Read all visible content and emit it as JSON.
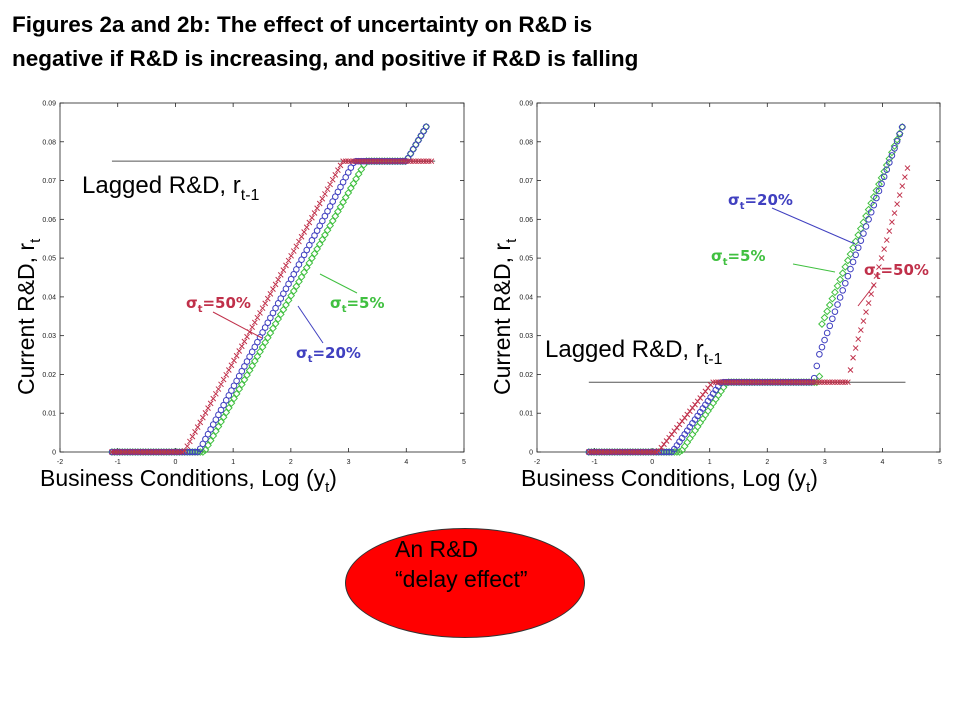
{
  "title_line1": "Figures 2a and 2b: The effect of uncertainty on R&D is",
  "title_line2": "negative if R&D is increasing, and positive if R&D is falling",
  "callout": {
    "line1": "An R&D",
    "line2": "“delay effect”"
  },
  "colors": {
    "sigma50": "#c0304a",
    "sigma20": "#4040c0",
    "sigma5": "#40c040",
    "lagged_line": "#555555",
    "bubble": "#ff0000"
  },
  "chart_data": [
    {
      "type": "scatter",
      "label": "2a",
      "xlabel": "Business Conditions, Log (y",
      "xlabel_sub": "t",
      "ylabel": "Current R&D, r",
      "ylabel_sub": "t",
      "xlim": [
        -2,
        5
      ],
      "ylim": [
        0,
        0.09
      ],
      "xticks": [
        "-2",
        "-1",
        "0",
        "1",
        "2",
        "3",
        "4",
        "5"
      ],
      "yticks": [
        "0",
        "0.01",
        "0.02",
        "0.03",
        "0.04",
        "0.05",
        "0.06",
        "0.07",
        "0.08",
        "0.09"
      ],
      "lagged": {
        "label": "Lagged R&D, r",
        "sub": "t-1",
        "value": 0.075,
        "x_range": [
          -1.1,
          4.5
        ]
      },
      "series": [
        {
          "key": "sigma50",
          "label": "=50%",
          "color": "#c0304a",
          "marker": "x",
          "x": [
            -1.1,
            0.15,
            2.9,
            4.45
          ],
          "y": [
            0,
            0,
            0.075,
            0.075
          ]
        },
        {
          "key": "sigma20",
          "label": "=20%",
          "color": "#4040c0",
          "marker": "o",
          "x": [
            -1.1,
            0.4,
            3.1,
            4.0,
            4.35
          ],
          "y": [
            0,
            0,
            0.075,
            0.075,
            0.084
          ]
        },
        {
          "key": "sigma5",
          "label": "=5%",
          "color": "#40c040",
          "marker": "d",
          "x": [
            -1.1,
            0.5,
            3.3,
            4.0,
            4.35
          ],
          "y": [
            0,
            0,
            0.075,
            0.075,
            0.084
          ]
        }
      ]
    },
    {
      "type": "scatter",
      "label": "2b",
      "xlabel": "Business Conditions, Log (y",
      "xlabel_sub": "t",
      "ylabel": "Current R&D, r",
      "ylabel_sub": "t",
      "xlim": [
        -2,
        5
      ],
      "ylim": [
        0,
        0.09
      ],
      "xticks": [
        "-2",
        "-1",
        "0",
        "1",
        "2",
        "3",
        "4",
        "5"
      ],
      "yticks": [
        "0",
        "0.01",
        "0.02",
        "0.03",
        "0.04",
        "0.05",
        "0.06",
        "0.07",
        "0.08",
        "0.09"
      ],
      "lagged": {
        "label": "Lagged R&D, r",
        "sub": "t-1",
        "value": 0.018,
        "x_range": [
          -1.1,
          4.4
        ]
      },
      "series": [
        {
          "key": "sigma50",
          "label": "=50%",
          "color": "#c0304a",
          "marker": "x",
          "x": [
            -1.1,
            0.1,
            1.05,
            3.4,
            3.5,
            4.45
          ],
          "y": [
            0,
            0,
            0.018,
            0.018,
            0.025,
            0.074
          ]
        },
        {
          "key": "sigma20",
          "label": "=20%",
          "color": "#4040c0",
          "marker": "o",
          "x": [
            -1.1,
            0.35,
            1.2,
            2.8,
            2.9,
            4.35
          ],
          "y": [
            0,
            0,
            0.018,
            0.018,
            0.025,
            0.084
          ]
        },
        {
          "key": "sigma5",
          "label": "=5%",
          "color": "#40c040",
          "marker": "d",
          "x": [
            -1.1,
            0.5,
            1.3,
            2.9,
            2.95,
            4.35
          ],
          "y": [
            0,
            0,
            0.018,
            0.018,
            0.033,
            0.084
          ]
        }
      ]
    }
  ]
}
